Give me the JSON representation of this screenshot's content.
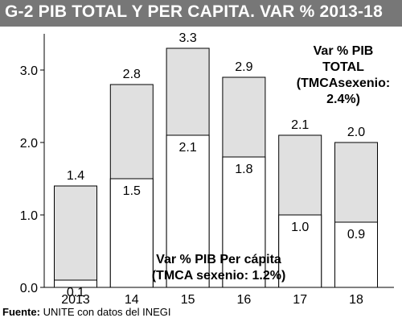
{
  "header": {
    "title": "G-2 PIB TOTAL Y PER CAPITA. VAR % 2013-18"
  },
  "chart_data": {
    "type": "bar",
    "categories": [
      "2013",
      "14",
      "15",
      "16",
      "17",
      "18"
    ],
    "series": [
      {
        "name": "Var % PIB TOTAL",
        "values": [
          1.4,
          2.8,
          3.3,
          2.9,
          2.1,
          2.0
        ],
        "color": "#e0e0e0"
      },
      {
        "name": "Var % PIB Per cápita",
        "values": [
          0.1,
          1.5,
          2.1,
          1.8,
          1.0,
          0.9
        ],
        "color": "#ffffff"
      }
    ],
    "ylim": [
      0,
      3.5
    ],
    "yticks": [
      "0.0",
      "1.0",
      "2.0",
      "3.0"
    ],
    "grid": false,
    "annotations": {
      "total": [
        "Var % PIB",
        "TOTAL",
        "(TMCAsexenio:",
        "2.4%)"
      ],
      "percapita": [
        "Var % PIB Per cápita",
        "(TMCA sexenio: 1.2%)"
      ]
    }
  },
  "source": {
    "label": "Fuente:",
    "text": " UNITE con datos del INEGI"
  }
}
